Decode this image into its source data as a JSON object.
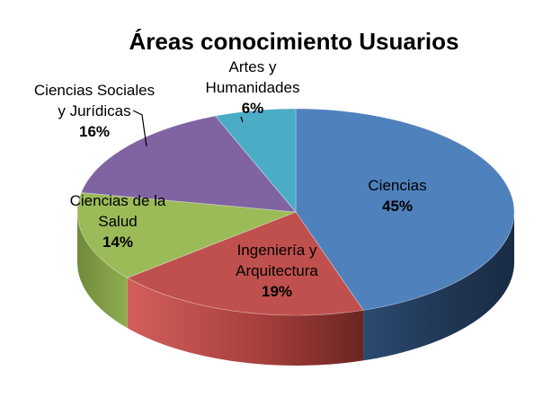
{
  "chart_data": {
    "type": "pie",
    "title": "Áreas conocimiento Usuarios",
    "slices": [
      {
        "label": "Ciencias",
        "value": 45,
        "value_label": "45%",
        "color": "#4f81bd"
      },
      {
        "label": "Ingeniería y Arquitectura",
        "value": 19,
        "value_label": "19%",
        "color": "#c0504d"
      },
      {
        "label": "Ciencias de la Salud",
        "value": 14,
        "value_label": "14%",
        "color": "#9bbb59"
      },
      {
        "label": "Ciencias Sociales y Jurídicas",
        "value": 16,
        "value_label": "16%",
        "color": "#8064a2"
      },
      {
        "label": "Artes y Humanidades",
        "value": 6,
        "value_label": "6%",
        "color": "#4bacc6"
      }
    ],
    "label_lines": [
      [
        "Ciencias"
      ],
      [
        "Ingeniería y",
        "Arquitectura"
      ],
      [
        "Ciencias de la",
        "Salud"
      ],
      [
        "Ciencias Sociales",
        "y Jurídicas"
      ],
      [
        "Artes y",
        "Humanidades"
      ]
    ],
    "style": "3d-pie",
    "legend": "none",
    "data_labels": "category-and-percent"
  }
}
